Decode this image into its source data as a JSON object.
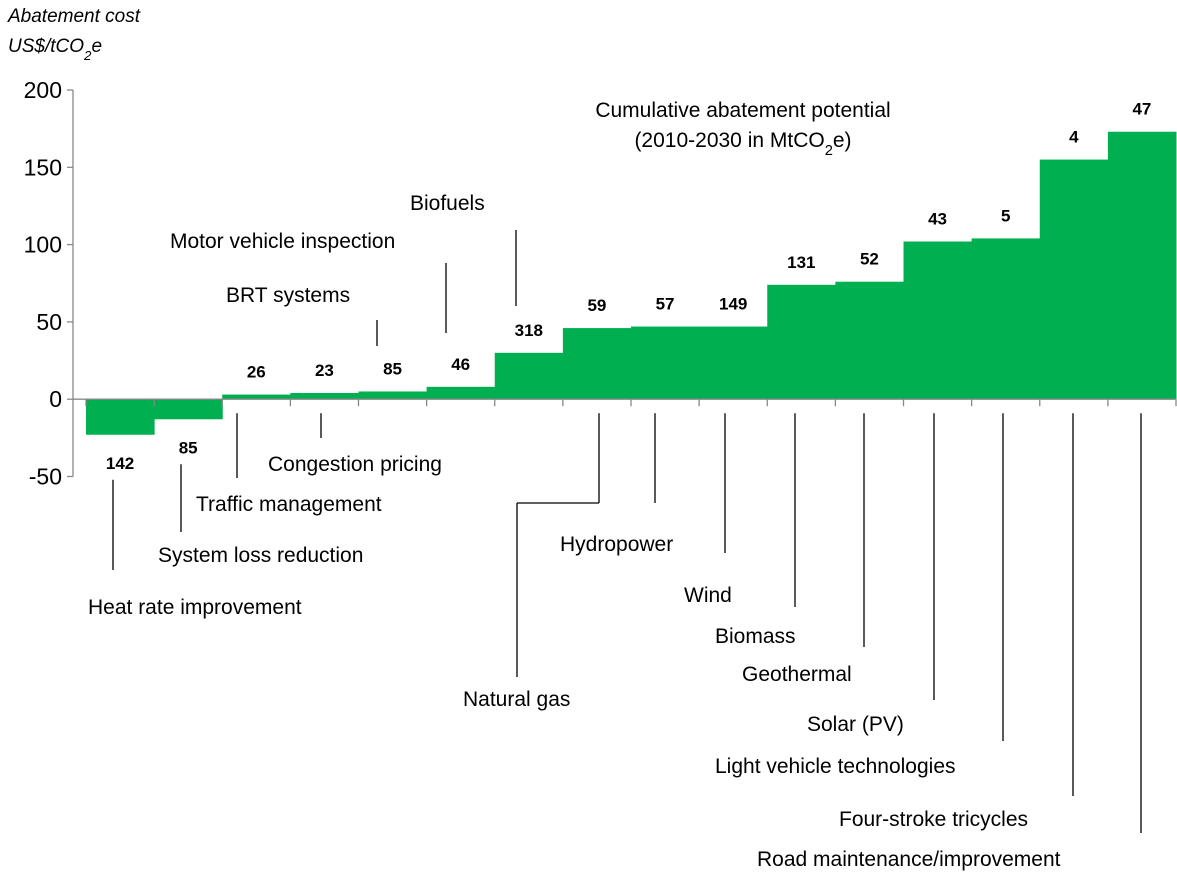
{
  "chart_data": {
    "type": "macc",
    "y_axis_title": [
      "Abatement cost",
      "US$/tCO2e"
    ],
    "annotation": [
      "Cumulative abatement potential",
      "(2010-2030 in MtCO2e)"
    ],
    "categories": [
      "Heat rate improvement",
      "System loss reduction",
      "Traffic management",
      "Congestion pricing",
      "BRT systems",
      "Motor vehicle inspection",
      "Biofuels",
      "Natural gas",
      "Hydropower",
      "Wind",
      "Biomass",
      "Geothermal",
      "Solar (PV)",
      "Light vehicle technologies",
      "Four-stroke tricycles",
      "Road maintenance/improvement"
    ],
    "values": [
      -23,
      -13,
      3,
      4,
      5,
      8,
      30,
      46,
      47,
      47,
      74,
      76,
      102,
      104,
      155,
      173
    ],
    "potentials": [
      142,
      85,
      26,
      23,
      85,
      46,
      318,
      59,
      57,
      149,
      131,
      52,
      43,
      5,
      4,
      47
    ],
    "color": "#00b050",
    "ylim": [
      -50,
      200
    ],
    "yticks": [
      -50,
      0,
      50,
      100,
      150,
      200
    ]
  }
}
